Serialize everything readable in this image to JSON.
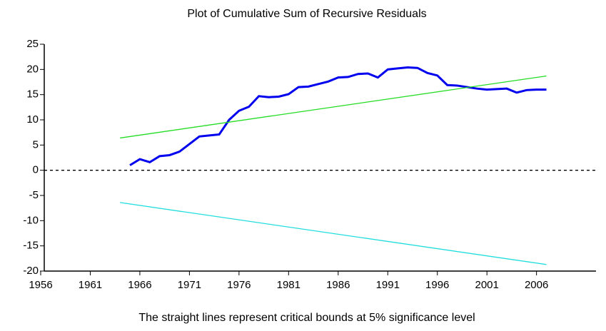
{
  "chart_data": {
    "type": "line",
    "title": "Plot of Cumulative Sum of Recursive Residuals",
    "x_label": "The straight lines represent critical bounds at 5% significance level",
    "xlim": [
      1956,
      2012
    ],
    "ylim": [
      -20,
      25
    ],
    "xticks": [
      1956,
      1961,
      1966,
      1971,
      1976,
      1981,
      1986,
      1991,
      1996,
      2001,
      2006
    ],
    "yticks": [
      -20,
      -15,
      -10,
      -5,
      0,
      5,
      10,
      15,
      20,
      25
    ],
    "hline": 0,
    "series": [
      {
        "color": "#0000ee",
        "width": 3,
        "x": [
          1965,
          1966,
          1967,
          1968,
          1969,
          1970,
          1971,
          1972,
          1973,
          1974,
          1975,
          1976,
          1977,
          1978,
          1979,
          1980,
          1981,
          1982,
          1983,
          1984,
          1985,
          1986,
          1987,
          1988,
          1989,
          1990,
          1991,
          1992,
          1993,
          1994,
          1995,
          1996,
          1997,
          1998,
          1999,
          2000,
          2001,
          2002,
          2003,
          2004,
          2005,
          2006,
          2007
        ],
        "values": [
          1,
          2.2,
          1.6,
          2.8,
          3.0,
          3.7,
          5.2,
          6.7,
          6.9,
          7.1,
          10.0,
          11.8,
          12.6,
          14.7,
          14.5,
          14.6,
          15.1,
          16.5,
          16.6,
          17.1,
          17.6,
          18.4,
          18.5,
          19.1,
          19.2,
          18.4,
          20.0,
          20.2,
          20.4,
          20.3,
          19.3,
          18.8,
          16.9,
          16.8,
          16.5,
          16.2,
          16.0,
          16.1,
          16.2,
          15.4,
          15.9,
          16.0,
          16.0
        ]
      },
      {
        "color": "#22dd22",
        "width": 1.3,
        "x": [
          1964,
          2007
        ],
        "values": [
          6.4,
          18.7
        ]
      },
      {
        "color": "#22dddd",
        "width": 1.3,
        "x": [
          1964,
          2007
        ],
        "values": [
          -6.4,
          -18.7
        ]
      }
    ]
  }
}
